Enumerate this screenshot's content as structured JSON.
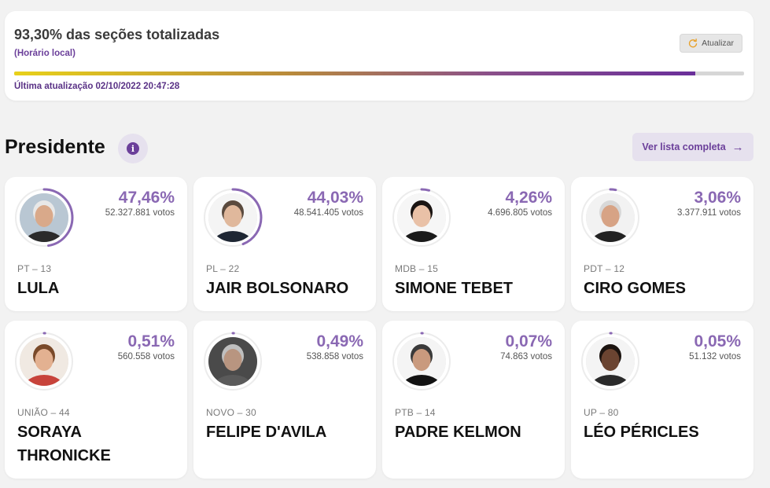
{
  "status": {
    "title": "93,30% das seções totalizadas",
    "subtitle": "(Horário local)",
    "refresh_label": "Atualizar",
    "progress": 0.933,
    "updated": "Última atualização 02/10/2022 20:47:28"
  },
  "section": {
    "title": "Presidente",
    "info_glyph": "i",
    "full_list_label": "Ver lista completa",
    "arrow_glyph": "→"
  },
  "colors": {
    "accent": "#6b3f9a",
    "percent": "#8a68b3",
    "ring": "#8a68b3",
    "ring_track": "#ececec"
  },
  "candidates": [
    {
      "party": "PT – 13",
      "name": "LULA",
      "percent": "47,46%",
      "share": 0.4746,
      "votes": "52.327.881 votos",
      "avatar": {
        "bg": "#b9c7d3",
        "skin": "#d9a98a",
        "hair": "#e8e8e8",
        "shirt": "#2b2b2b"
      }
    },
    {
      "party": "PL – 22",
      "name": "JAIR BOLSONARO",
      "percent": "44,03%",
      "share": 0.4403,
      "votes": "48.541.405 votos",
      "avatar": {
        "bg": "#f4f4f4",
        "skin": "#e0b89c",
        "hair": "#5a4a3e",
        "shirt": "#1e2633"
      }
    },
    {
      "party": "MDB – 15",
      "name": "SIMONE TEBET",
      "percent": "4,26%",
      "share": 0.0426,
      "votes": "4.696.805 votos",
      "avatar": {
        "bg": "#f6f6f6",
        "skin": "#e9c1a7",
        "hair": "#1a1412",
        "shirt": "#1a1a1a"
      }
    },
    {
      "party": "PDT – 12",
      "name": "CIRO GOMES",
      "percent": "3,06%",
      "share": 0.0306,
      "votes": "3.377.911 votos",
      "avatar": {
        "bg": "#f2f2f2",
        "skin": "#d7a385",
        "hair": "#d8d8d8",
        "shirt": "#222222"
      }
    },
    {
      "party": "UNIÃO – 44",
      "name": "SORAYA THRONICKE",
      "percent": "0,51%",
      "share": 0.0051,
      "votes": "560.558 votos",
      "avatar": {
        "bg": "#f0e9e2",
        "skin": "#e3b191",
        "hair": "#7a4a2a",
        "shirt": "#c7433b"
      }
    },
    {
      "party": "NOVO – 30",
      "name": "FELIPE D'AVILA",
      "percent": "0,49%",
      "share": 0.0049,
      "votes": "538.858 votos",
      "avatar": {
        "bg": "#4a4a4a",
        "skin": "#b89580",
        "hair": "#bfbfbf",
        "shirt": "#5a5a5a"
      }
    },
    {
      "party": "PTB – 14",
      "name": "PADRE KELMON",
      "percent": "0,07%",
      "share": 0.0007,
      "votes": "74.863 votos",
      "avatar": {
        "bg": "#f4f4f4",
        "skin": "#c99a7e",
        "hair": "#3a3a3a",
        "shirt": "#121212"
      }
    },
    {
      "party": "UP – 80",
      "name": "LÉO PÉRICLES",
      "percent": "0,05%",
      "share": 0.0005,
      "votes": "51.132 votos",
      "avatar": {
        "bg": "#f4f4f4",
        "skin": "#6b4431",
        "hair": "#1c1410",
        "shirt": "#2a2a2a"
      }
    }
  ]
}
